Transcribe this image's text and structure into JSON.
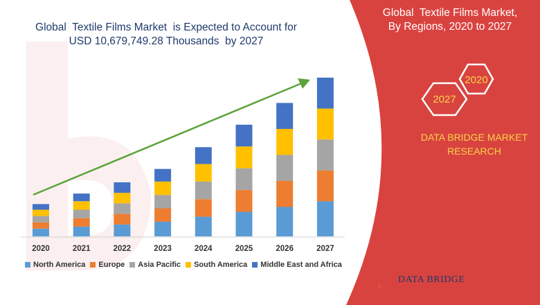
{
  "page": {
    "title_lines": [
      "Global  Textile Films Market  is Expected to Account for",
      "USD 10,679,749.28 Thousands  by 2027"
    ],
    "panel_title_lines": [
      "Global  Textile Films Market,",
      "By Regions, 2020 to 2027"
    ],
    "hex_labels": [
      "2020",
      "2027"
    ],
    "brand_lines": [
      "DATA BRIDGE MARKET",
      "RESEARCH"
    ],
    "logo_text": "DATA BRIDGE",
    "colors": {
      "panel_red": "#d9433f",
      "accent_yellow": "#f6d34a",
      "arrow_green": "#5ca33a",
      "title_blue": "#1f3a6b"
    }
  },
  "chart_data": {
    "type": "bar",
    "stacked": true,
    "categories": [
      "2020",
      "2021",
      "2022",
      "2023",
      "2024",
      "2025",
      "2026",
      "2027"
    ],
    "series": [
      {
        "name": "North America",
        "color": "#5b9bd5",
        "values": [
          11,
          14,
          17,
          21,
          28,
          35,
          42,
          50
        ]
      },
      {
        "name": "Europe",
        "color": "#ed7d31",
        "values": [
          9,
          12,
          15,
          19,
          25,
          31,
          37,
          44
        ]
      },
      {
        "name": "Asia Pacific",
        "color": "#a5a5a5",
        "values": [
          9,
          12,
          15,
          19,
          25,
          31,
          37,
          44
        ]
      },
      {
        "name": "South America",
        "color": "#ffc000",
        "values": [
          9,
          12,
          15,
          19,
          25,
          31,
          37,
          44
        ]
      },
      {
        "name": "Middle East and Africa",
        "color": "#4472c4",
        "values": [
          8,
          11,
          15,
          18,
          24,
          31,
          37,
          44
        ]
      }
    ],
    "grid": false,
    "legend_position": "bottom",
    "trend_arrow": true
  }
}
